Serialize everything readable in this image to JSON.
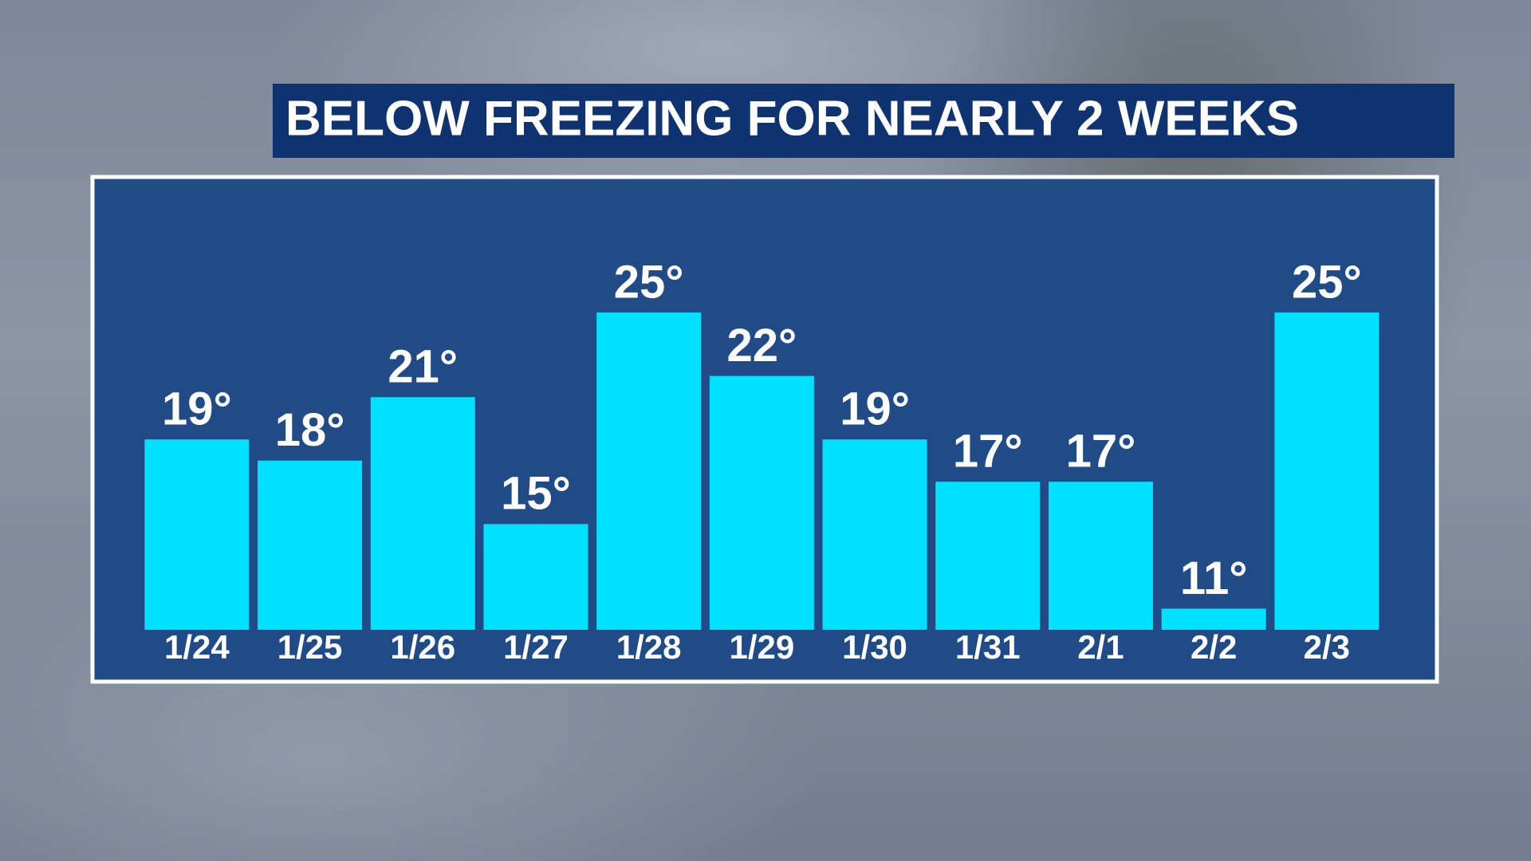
{
  "chart_data": {
    "type": "bar",
    "title": "BELOW FREEZING FOR NEARLY 2 WEEKS",
    "categories": [
      "1/24",
      "1/25",
      "1/26",
      "1/27",
      "1/28",
      "1/29",
      "1/30",
      "1/31",
      "2/1",
      "2/2",
      "2/3"
    ],
    "values": [
      19,
      18,
      21,
      15,
      25,
      22,
      19,
      17,
      17,
      11,
      25
    ],
    "value_labels": [
      "19°",
      "18°",
      "21°",
      "15°",
      "25°",
      "22°",
      "19°",
      "17°",
      "17°",
      "11°",
      "25°"
    ],
    "color": "#00e1ff",
    "ylim": [
      10,
      25
    ]
  }
}
